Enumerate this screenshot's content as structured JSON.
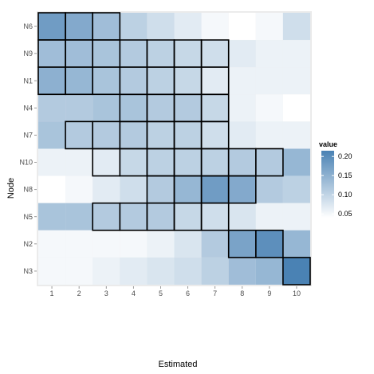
{
  "chart_data": {
    "type": "heatmap",
    "xlabel": "Estimated",
    "ylabel": "Node",
    "x_categories": [
      "1",
      "2",
      "3",
      "4",
      "5",
      "6",
      "7",
      "8",
      "9",
      "10"
    ],
    "y_categories": [
      "N6",
      "N9",
      "N1",
      "N4",
      "N7",
      "N10",
      "N8",
      "N5",
      "N2",
      "N3"
    ],
    "values": [
      [
        0.19,
        0.17,
        0.14,
        0.11,
        0.09,
        0.07,
        0.05,
        0.04,
        0.05,
        0.09
      ],
      [
        0.14,
        0.14,
        0.13,
        0.12,
        0.11,
        0.1,
        0.09,
        0.07,
        0.06,
        0.06
      ],
      [
        0.16,
        0.15,
        0.13,
        0.12,
        0.11,
        0.1,
        0.07,
        0.06,
        0.06,
        0.06
      ],
      [
        0.12,
        0.12,
        0.13,
        0.13,
        0.12,
        0.12,
        0.1,
        0.06,
        0.05,
        0.04
      ],
      [
        0.13,
        0.12,
        0.12,
        0.12,
        0.11,
        0.11,
        0.09,
        0.07,
        0.06,
        0.06
      ],
      [
        0.06,
        0.06,
        0.07,
        0.1,
        0.11,
        0.11,
        0.11,
        0.12,
        0.12,
        0.15
      ],
      [
        0.04,
        0.05,
        0.07,
        0.09,
        0.12,
        0.15,
        0.19,
        0.17,
        0.12,
        0.11
      ],
      [
        0.13,
        0.13,
        0.12,
        0.12,
        0.12,
        0.1,
        0.09,
        0.08,
        0.06,
        0.06
      ],
      [
        0.05,
        0.05,
        0.05,
        0.05,
        0.06,
        0.08,
        0.12,
        0.18,
        0.21,
        0.15
      ],
      [
        0.05,
        0.05,
        0.06,
        0.07,
        0.08,
        0.09,
        0.11,
        0.14,
        0.15,
        0.23
      ]
    ],
    "highlighted": [
      [
        1,
        2,
        3
      ],
      [
        1,
        2,
        3,
        4,
        5,
        6,
        7
      ],
      [
        1,
        2,
        3,
        4,
        5,
        6,
        7
      ],
      [
        4,
        5,
        6,
        7
      ],
      [
        2,
        3,
        4,
        5,
        6,
        7
      ],
      [
        3,
        4,
        5,
        6,
        7,
        8,
        9
      ],
      [
        5,
        6,
        7,
        8
      ],
      [
        3,
        4,
        5,
        6,
        7
      ],
      [
        8,
        9
      ],
      [
        10
      ]
    ],
    "color_scale": {
      "low": "#ffffff",
      "high": "#4a82b4",
      "min": 0.04,
      "max": 0.23
    },
    "grid": true,
    "legend": {
      "title": "value",
      "placement": "right",
      "ticks": [
        0.05,
        0.1,
        0.15,
        0.2
      ],
      "tick_labels": [
        "0.05",
        "0.10",
        "0.15",
        "0.20"
      ]
    }
  }
}
